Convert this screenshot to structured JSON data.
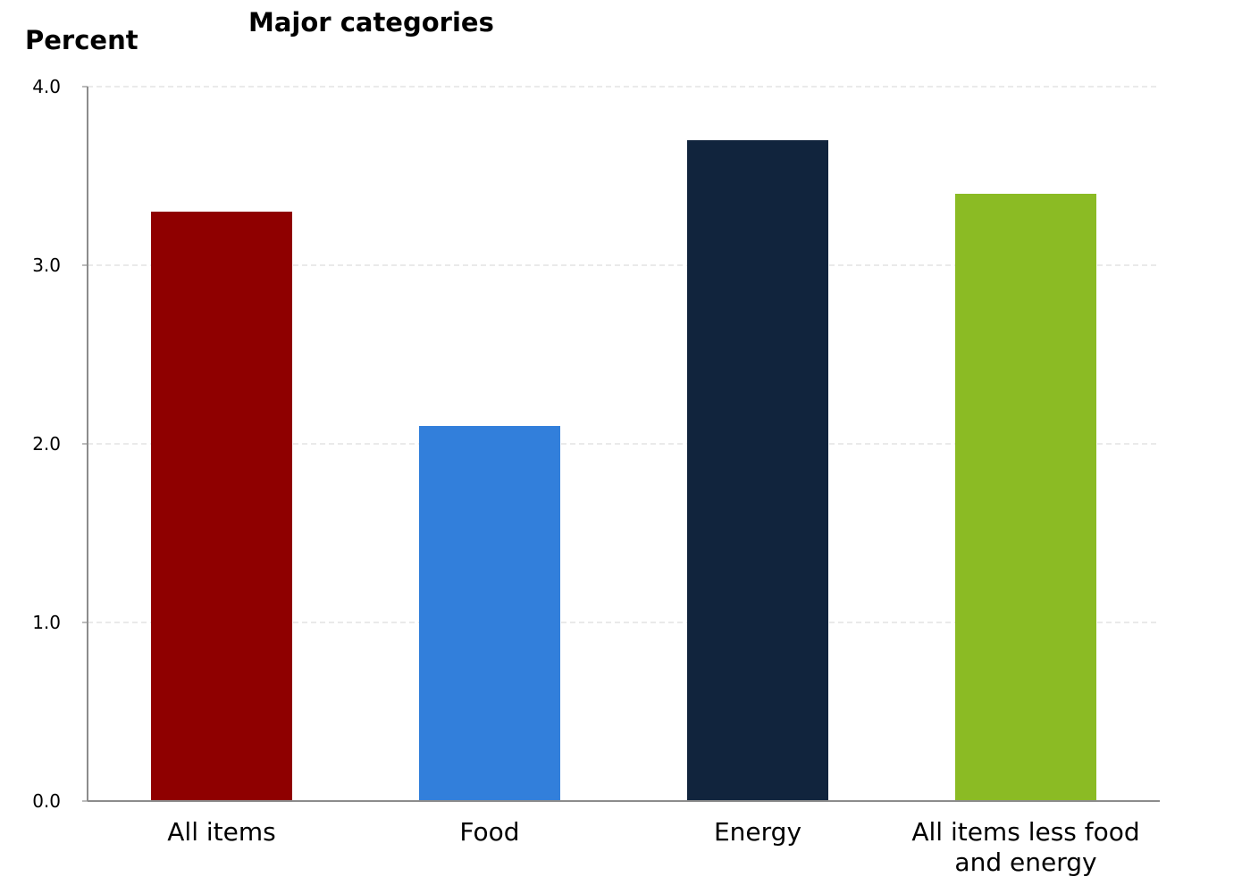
{
  "chart_data": {
    "type": "bar",
    "title": "Major categories",
    "ylabel": "Percent",
    "xlabel": "",
    "categories": [
      [
        "All items"
      ],
      [
        "Food"
      ],
      [
        "Energy"
      ],
      [
        "All items less food",
        "and energy"
      ]
    ],
    "values": [
      3.3,
      2.1,
      3.7,
      3.4
    ],
    "colors": [
      "#8f0000",
      "#327fdb",
      "#11243d",
      "#8bbb24"
    ],
    "ylim": [
      0,
      4
    ],
    "yticks": [
      "0.0",
      "1.0",
      "2.0",
      "3.0",
      "4.0"
    ],
    "grid": true,
    "legend": "none"
  }
}
